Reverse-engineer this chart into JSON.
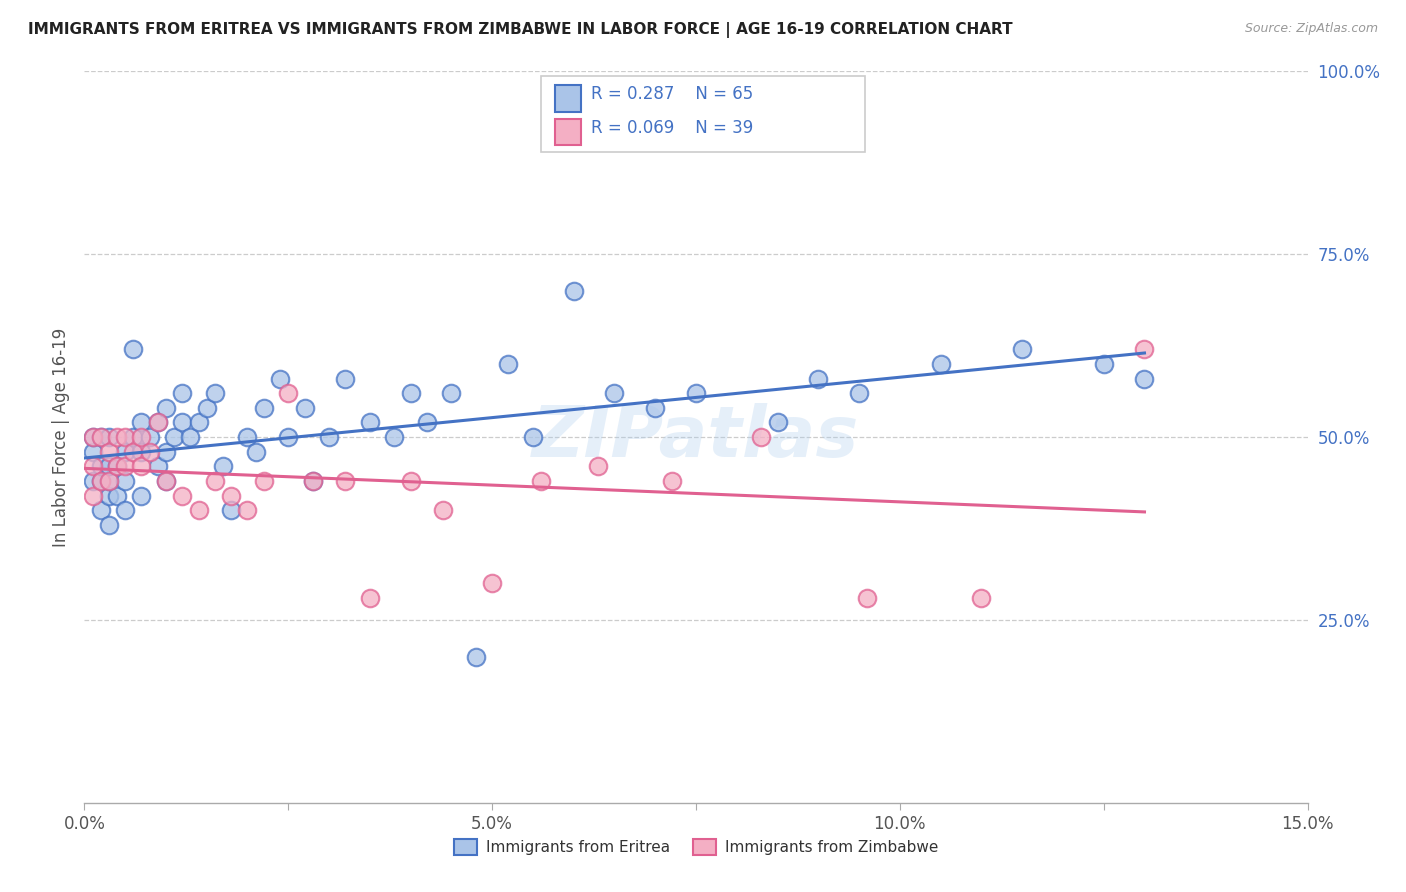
{
  "title": "IMMIGRANTS FROM ERITREA VS IMMIGRANTS FROM ZIMBABWE IN LABOR FORCE | AGE 16-19 CORRELATION CHART",
  "source": "Source: ZipAtlas.com",
  "ylabel": "In Labor Force | Age 16-19",
  "xlim": [
    0.0,
    0.15
  ],
  "ylim": [
    0.0,
    1.0
  ],
  "xticks": [
    0.0,
    0.025,
    0.05,
    0.075,
    0.1,
    0.125,
    0.15
  ],
  "xticklabels": [
    "0.0%",
    "",
    "5.0%",
    "",
    "10.0%",
    "",
    "15.0%"
  ],
  "yticks": [
    0.25,
    0.5,
    0.75,
    1.0
  ],
  "yticklabels": [
    "25.0%",
    "50.0%",
    "75.0%",
    "100.0%"
  ],
  "eritrea_R": 0.287,
  "eritrea_N": 65,
  "zimbabwe_R": 0.069,
  "zimbabwe_N": 39,
  "eritrea_color": "#aac4e8",
  "zimbabwe_color": "#f4afc4",
  "eritrea_line_color": "#4472c4",
  "zimbabwe_line_color": "#e06090",
  "legend_text_color": "#4472c4",
  "watermark": "ZIPatlas",
  "background_color": "#ffffff",
  "eritrea_x": [
    0.001,
    0.001,
    0.001,
    0.002,
    0.002,
    0.002,
    0.002,
    0.003,
    0.003,
    0.003,
    0.003,
    0.003,
    0.004,
    0.004,
    0.005,
    0.005,
    0.005,
    0.006,
    0.006,
    0.007,
    0.007,
    0.007,
    0.008,
    0.009,
    0.009,
    0.01,
    0.01,
    0.01,
    0.011,
    0.012,
    0.012,
    0.013,
    0.014,
    0.015,
    0.016,
    0.017,
    0.018,
    0.02,
    0.021,
    0.022,
    0.024,
    0.025,
    0.027,
    0.028,
    0.03,
    0.032,
    0.035,
    0.038,
    0.04,
    0.042,
    0.045,
    0.048,
    0.052,
    0.055,
    0.06,
    0.065,
    0.07,
    0.075,
    0.085,
    0.09,
    0.095,
    0.105,
    0.115,
    0.125,
    0.13
  ],
  "eritrea_y": [
    0.44,
    0.48,
    0.5,
    0.4,
    0.44,
    0.46,
    0.5,
    0.38,
    0.42,
    0.44,
    0.46,
    0.5,
    0.42,
    0.46,
    0.4,
    0.44,
    0.48,
    0.62,
    0.5,
    0.42,
    0.48,
    0.52,
    0.5,
    0.46,
    0.52,
    0.44,
    0.48,
    0.54,
    0.5,
    0.52,
    0.56,
    0.5,
    0.52,
    0.54,
    0.56,
    0.46,
    0.4,
    0.5,
    0.48,
    0.54,
    0.58,
    0.5,
    0.54,
    0.44,
    0.5,
    0.58,
    0.52,
    0.5,
    0.56,
    0.52,
    0.56,
    0.2,
    0.6,
    0.5,
    0.7,
    0.56,
    0.54,
    0.56,
    0.52,
    0.58,
    0.56,
    0.6,
    0.62,
    0.6,
    0.58
  ],
  "zimbabwe_x": [
    0.001,
    0.001,
    0.001,
    0.002,
    0.002,
    0.003,
    0.003,
    0.004,
    0.004,
    0.005,
    0.005,
    0.006,
    0.007,
    0.007,
    0.008,
    0.009,
    0.01,
    0.012,
    0.014,
    0.016,
    0.018,
    0.02,
    0.022,
    0.025,
    0.028,
    0.032,
    0.035,
    0.04,
    0.044,
    0.05,
    0.056,
    0.063,
    0.072,
    0.083,
    0.096,
    0.11,
    0.13
  ],
  "zimbabwe_y": [
    0.42,
    0.46,
    0.5,
    0.44,
    0.5,
    0.44,
    0.48,
    0.46,
    0.5,
    0.46,
    0.5,
    0.48,
    0.46,
    0.5,
    0.48,
    0.52,
    0.44,
    0.42,
    0.4,
    0.44,
    0.42,
    0.4,
    0.44,
    0.56,
    0.44,
    0.44,
    0.28,
    0.44,
    0.4,
    0.3,
    0.44,
    0.46,
    0.44,
    0.5,
    0.28,
    0.28,
    0.62
  ],
  "eritrea_trend_x": [
    0.0,
    0.13
  ],
  "eritrea_trend_y": [
    0.415,
    0.65
  ],
  "zimbabwe_trend_x": [
    0.0,
    0.13
  ],
  "zimbabwe_trend_y": [
    0.43,
    0.5
  ]
}
